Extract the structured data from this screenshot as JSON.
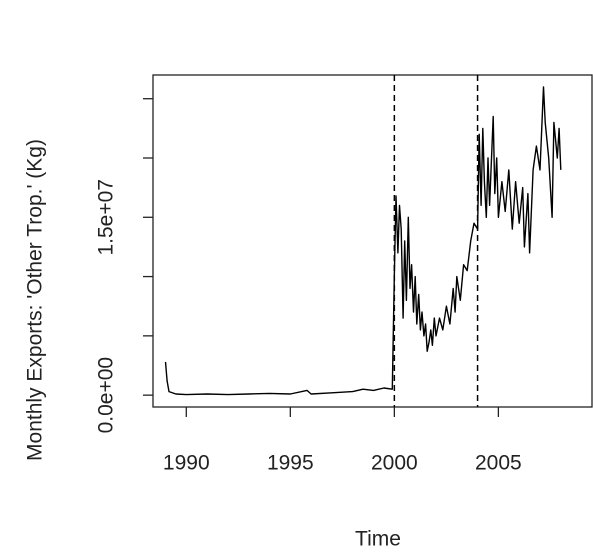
{
  "chart_data": {
    "type": "line",
    "ylabel": "Monthly Exports: 'Other Trop.' (Kg)",
    "xlabel": "Time",
    "color": "#000000",
    "x": [
      1989.0,
      1989.08,
      1989.17,
      1989.5,
      1990,
      1991,
      1992,
      1993,
      1994,
      1995,
      1995.8,
      1996,
      1997,
      1998,
      1998.5,
      1999,
      1999.5,
      1999.9,
      2000.0,
      2000.08,
      2000.17,
      2000.25,
      2000.33,
      2000.42,
      2000.5,
      2000.58,
      2000.67,
      2000.75,
      2000.83,
      2000.92,
      2001.0,
      2001.08,
      2001.17,
      2001.25,
      2001.33,
      2001.42,
      2001.5,
      2001.58,
      2001.67,
      2001.75,
      2001.83,
      2001.92,
      2002.0,
      2002.17,
      2002.33,
      2002.5,
      2002.67,
      2002.83,
      2002.92,
      2003.0,
      2003.17,
      2003.33,
      2003.5,
      2003.67,
      2003.83,
      2004.0,
      2004.08,
      2004.17,
      2004.25,
      2004.33,
      2004.42,
      2004.5,
      2004.58,
      2004.75,
      2004.83,
      2004.92,
      2005.0,
      2005.17,
      2005.33,
      2005.5,
      2005.67,
      2005.83,
      2006.0,
      2006.17,
      2006.25,
      2006.42,
      2006.5,
      2006.67,
      2006.83,
      2007.0,
      2007.17,
      2007.25,
      2007.42,
      2007.58,
      2007.67,
      2007.83,
      2007.92,
      2008.0
    ],
    "values": [
      2800000.0,
      1200000.0,
      300000.0,
      100000.0,
      50000.0,
      100000.0,
      50000.0,
      100000.0,
      150000.0,
      100000.0,
      400000.0,
      100000.0,
      200000.0,
      300000.0,
      500000.0,
      400000.0,
      600000.0,
      500000.0,
      10000000.0,
      16800000.0,
      12000000.0,
      16000000.0,
      14000000.0,
      6500000.0,
      13000000.0,
      8000000.0,
      15000000.0,
      9000000.0,
      11000000.0,
      7000000.0,
      10000000.0,
      6000000.0,
      8500000.0,
      5500000.0,
      7000000.0,
      5000000.0,
      6000000.0,
      3700000.0,
      4500000.0,
      5500000.0,
      4200000.0,
      6500000.0,
      5000000.0,
      6500000.0,
      5500000.0,
      7500000.0,
      6000000.0,
      9000000.0,
      7000000.0,
      10000000.0,
      8000000.0,
      11000000.0,
      10500000.0,
      13000000.0,
      14500000.0,
      14000000.0,
      22000000.0,
      16000000.0,
      22500000.0,
      18000000.0,
      15000000.0,
      20000000.0,
      16000000.0,
      23500000.0,
      17000000.0,
      20000000.0,
      15000000.0,
      18000000.0,
      15500000.0,
      19000000.0,
      14000000.0,
      18000000.0,
      14500000.0,
      17500000.0,
      12500000.0,
      17000000.0,
      12000000.0,
      19000000.0,
      21000000.0,
      19000000.0,
      26000000.0,
      23000000.0,
      20000000.0,
      15000000.0,
      23000000.0,
      20000000.0,
      22500000.0,
      19000000.0
    ],
    "vlines": [
      2000.0,
      2004.0
    ],
    "xlim": [
      1988.4,
      2009.5
    ],
    "ylim": [
      -1000000,
      27000000
    ],
    "xticks": [
      1990,
      1995,
      2000,
      2005
    ],
    "yticks": [
      {
        "value": 0,
        "label": "0.0e+00"
      },
      {
        "value": 5000000,
        "label": null
      },
      {
        "value": 10000000,
        "label": null
      },
      {
        "value": 15000000,
        "label": "1.5e+07"
      },
      {
        "value": 20000000,
        "label": null
      },
      {
        "value": 25000000,
        "label": null
      }
    ]
  }
}
